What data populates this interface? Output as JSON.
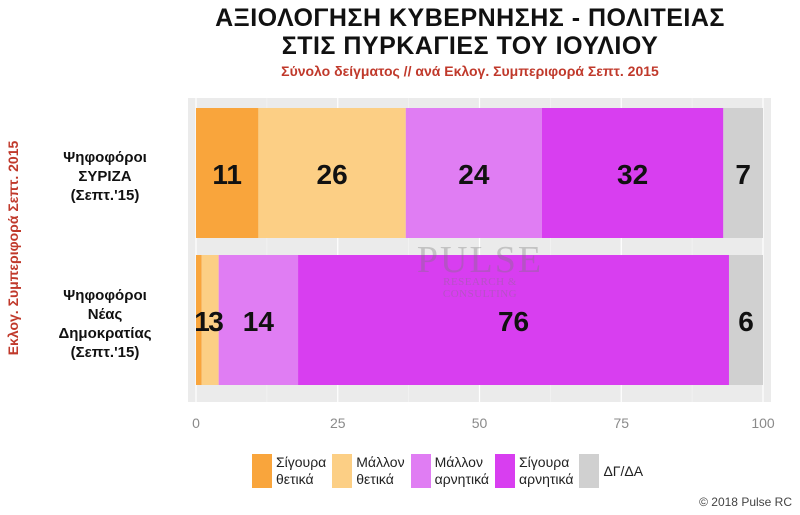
{
  "title_line1": "ΑΞΙΟΛΟΓΗΣΗ ΚΥΒΕΡΝΗΣΗΣ - ΠΟΛΙΤΕΙΑΣ",
  "title_line2": "ΣΤΙΣ ΠΥΡΚΑΓΙΕΣ ΤΟΥ ΙΟΥΛΙΟΥ",
  "subtitle": "Σύνολο δείγματος // ανά Εκλογ. Συμπεριφορά Σεπτ. 2015",
  "watermark": {
    "main": "PULSE",
    "sub": "RESEARCH & CONSULTING"
  },
  "copyright": "© 2018 Pulse RC",
  "chart_data": {
    "type": "bar",
    "orientation": "horizontal",
    "stacked": true,
    "ylabel": "Εκλογ. Συμπεριφορά Σεπτ. 2015",
    "categories": [
      "Ψηφοφόροι\nΣΥΡΙΖΑ\n(Σεπτ.'15)",
      "Ψηφοφόροι\nΝέας\nΔημοκρατίας\n(Σεπτ.'15)"
    ],
    "series": [
      {
        "name": "Σίγουρα\nθετικά",
        "color": "#f9a53c",
        "values": [
          11,
          1
        ]
      },
      {
        "name": "Μάλλον\nθετικά",
        "color": "#fccf85",
        "values": [
          26,
          3
        ]
      },
      {
        "name": "Μάλλον\nαρνητικά",
        "color": "#e07df3",
        "values": [
          24,
          14
        ]
      },
      {
        "name": "Σίγουρα\nαρνητικά",
        "color": "#d83ef0",
        "values": [
          32,
          76
        ]
      },
      {
        "name": "ΔΓ/ΔΑ",
        "color": "#d0d0d0",
        "values": [
          7,
          6
        ]
      }
    ],
    "xlim": [
      0,
      100
    ],
    "xticks": [
      0,
      25,
      50,
      75,
      100
    ],
    "grid": true,
    "legend_position": "bottom",
    "data_labels": [
      [
        "11",
        "26",
        "24",
        "32",
        "7"
      ],
      [
        "1",
        "3",
        "14",
        "76",
        "6"
      ]
    ]
  }
}
